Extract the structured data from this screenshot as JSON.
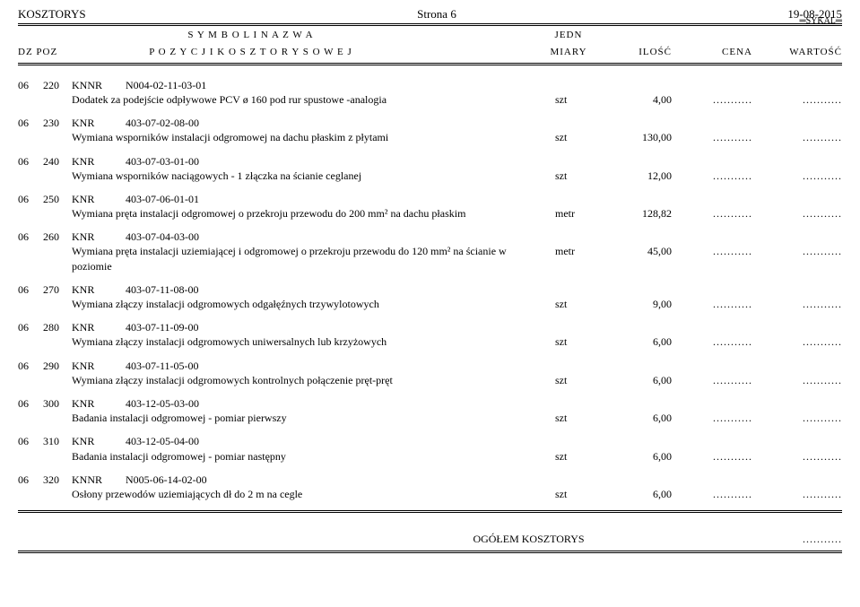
{
  "header": {
    "title_left": "KOSZTORYS",
    "title_center": "Strona 6",
    "title_right": "19-08-2015",
    "sykal": "SYKAL",
    "line1_center": "S Y M B O L   I   N A Z W A",
    "line1_right": "JEDN",
    "line2_left": "DZ  POZ",
    "line2_center": "P O Z Y C J I   K O S Z T O R Y S O W E J",
    "col_miary": "MIARY",
    "col_ilosc": "ILOŚĆ",
    "col_cena": "CENA",
    "col_wartosc": "WARTOŚĆ"
  },
  "rows": [
    {
      "dz": "06",
      "poz": "220",
      "code": "KNNR",
      "num": "N004-02-11-03-01",
      "desc": "Dodatek za podejście odpływowe PCV ø 160 pod rur spustowe -analogia",
      "unit": "szt",
      "qty": "4,00",
      "cena": "...........",
      "wart": "..........."
    },
    {
      "dz": "06",
      "poz": "230",
      "code": "KNR",
      "num": "403-07-02-08-00",
      "desc": "Wymiana wsporników instalacji odgromowej na dachu płaskim z płytami",
      "unit": "szt",
      "qty": "130,00",
      "cena": "...........",
      "wart": "..........."
    },
    {
      "dz": "06",
      "poz": "240",
      "code": "KNR",
      "num": "403-07-03-01-00",
      "desc": "Wymiana wsporników naciągowych - 1 złączka na ścianie ceglanej",
      "unit": "szt",
      "qty": "12,00",
      "cena": "...........",
      "wart": "..........."
    },
    {
      "dz": "06",
      "poz": "250",
      "code": "KNR",
      "num": "403-07-06-01-01",
      "desc": "Wymiana pręta instalacji odgromowej o przekroju przewodu do 200 mm² na dachu płaskim",
      "unit": "metr",
      "qty": "128,82",
      "cena": "...........",
      "wart": "..........."
    },
    {
      "dz": "06",
      "poz": "260",
      "code": "KNR",
      "num": "403-07-04-03-00",
      "desc": "Wymiana pręta instalacji uziemiającej i odgromowej o przekroju przewodu do 120 mm² na ścianie w poziomie",
      "unit": "metr",
      "qty": "45,00",
      "cena": "...........",
      "wart": "..........."
    },
    {
      "dz": "06",
      "poz": "270",
      "code": "KNR",
      "num": "403-07-11-08-00",
      "desc": "Wymiana złączy instalacji odgromowych odgałęźnych trzywylotowych",
      "unit": "szt",
      "qty": "9,00",
      "cena": "...........",
      "wart": "..........."
    },
    {
      "dz": "06",
      "poz": "280",
      "code": "KNR",
      "num": "403-07-11-09-00",
      "desc": "Wymiana złączy instalacji odgromowych uniwersalnych lub krzyżowych",
      "unit": "szt",
      "qty": "6,00",
      "cena": "...........",
      "wart": "..........."
    },
    {
      "dz": "06",
      "poz": "290",
      "code": "KNR",
      "num": "403-07-11-05-00",
      "desc": "Wymiana złączy instalacji odgromowych kontrolnych połączenie pręt-pręt",
      "unit": "szt",
      "qty": "6,00",
      "cena": "...........",
      "wart": "..........."
    },
    {
      "dz": "06",
      "poz": "300",
      "code": "KNR",
      "num": "403-12-05-03-00",
      "desc": "Badania instalacji odgromowej - pomiar pierwszy",
      "unit": "szt",
      "qty": "6,00",
      "cena": "...........",
      "wart": "..........."
    },
    {
      "dz": "06",
      "poz": "310",
      "code": "KNR",
      "num": "403-12-05-04-00",
      "desc": "Badania instalacji odgromowej - pomiar następny",
      "unit": "szt",
      "qty": "6,00",
      "cena": "...........",
      "wart": "..........."
    },
    {
      "dz": "06",
      "poz": "320",
      "code": "KNNR",
      "num": "N005-06-14-02-00",
      "desc": "Osłony przewodów uziemiających dł do 2 m na cegle",
      "unit": "szt",
      "qty": "6,00",
      "cena": "...........",
      "wart": "..........."
    }
  ],
  "footer": {
    "label": "OGÓŁEM KOSZTORYS",
    "value": "..........."
  }
}
